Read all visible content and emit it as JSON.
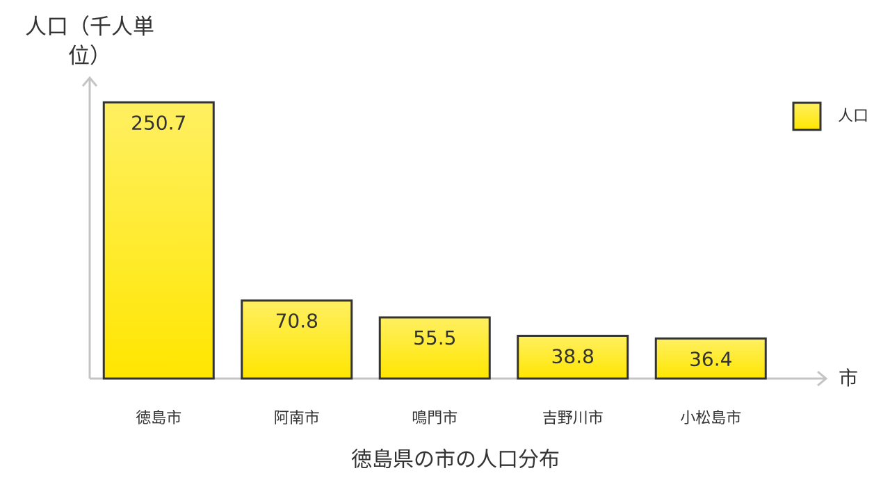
{
  "chart_data": {
    "type": "bar",
    "title": "徳島県の市の人口分布",
    "xlabel": "市",
    "ylabel": "人口（千人単位）",
    "categories": [
      "徳島市",
      "阿南市",
      "鳴門市",
      "吉野川市",
      "小松島市"
    ],
    "series": [
      {
        "name": "人口",
        "color": "#ffe600",
        "values": [
          250.7,
          70.8,
          55.5,
          38.8,
          36.4
        ]
      }
    ],
    "ylim": [
      0,
      273
    ],
    "legend": "top-right"
  }
}
